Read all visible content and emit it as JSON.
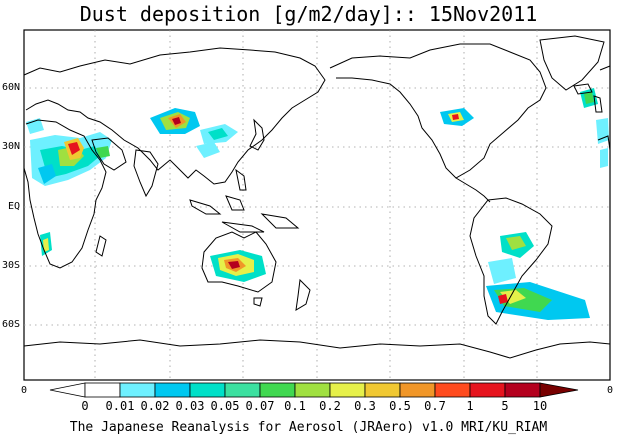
{
  "title": "Dust deposition [g/m2/day]:: 15Nov2011",
  "lat_labels": [
    "60N",
    "30N",
    "EQ",
    "30S",
    "60S"
  ],
  "colorbar": {
    "edge_left": "0",
    "edge_right": "0",
    "labels": [
      "0",
      "0.01",
      "0.02",
      "0.03",
      "0.05",
      "0.07",
      "0.1",
      "0.2",
      "0.3",
      "0.5",
      "0.7",
      "1",
      "5",
      "10"
    ],
    "colors": [
      "#ffffff",
      "#6ef0ff",
      "#00c8f0",
      "#00e0c8",
      "#3ce0a0",
      "#40d850",
      "#a0e040",
      "#e6f04a",
      "#f0c832",
      "#f09628",
      "#ff4b1e",
      "#e6141e",
      "#b4001e",
      "#780000"
    ]
  },
  "footer": "The Japanese Reanalysis for Aerosol (JRAero) v1.0 MRI/KU_RIAM"
}
